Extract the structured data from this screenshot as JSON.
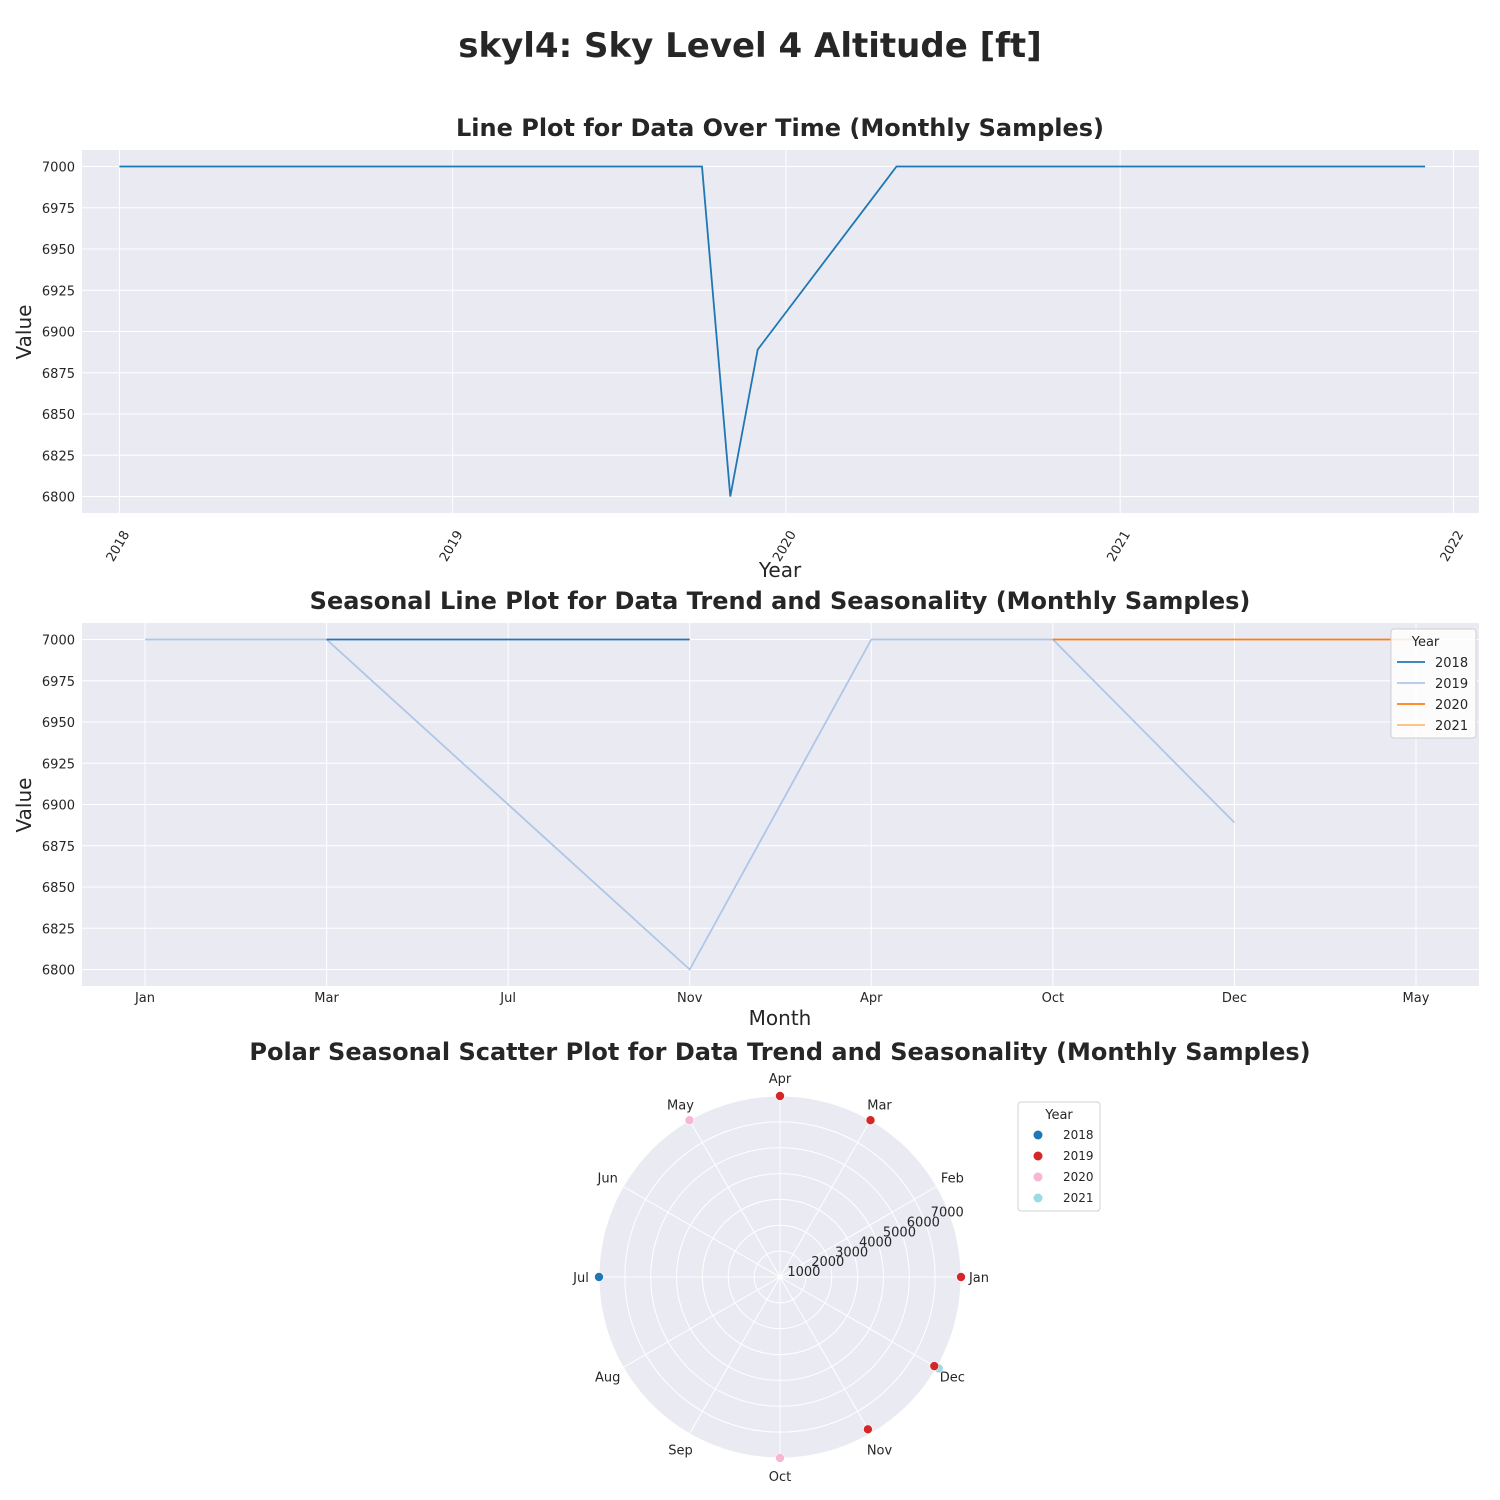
{
  "suptitle": "skyl4: Sky Level 4 Altitude [ft]",
  "colors": {
    "plot_bg": "#eaeaf2",
    "grid": "#ffffff",
    "main_line": "#1f77b4",
    "year_2018_line": "#1f77b4",
    "year_2019_line": "#aec7e8",
    "year_2020_line": "#ff7f0e",
    "year_2021_line": "#ffbb78",
    "year_2018_point": "#1f77b4",
    "year_2019_point": "#d62728",
    "year_2020_point": "#f7b6d2",
    "year_2021_point": "#9edae5"
  },
  "chart_data": [
    {
      "type": "line",
      "title": "Line Plot for Data Over Time (Monthly Samples)",
      "xlabel": "Year",
      "ylabel": "Value",
      "x_ticks": [
        "2018",
        "2019",
        "2020",
        "2021",
        "2022"
      ],
      "y_ticks": [
        7000,
        6975,
        6950,
        6925,
        6900,
        6875,
        6850,
        6825,
        6800
      ],
      "ylim": [
        6790,
        7010
      ],
      "xlim": [
        "2017-11-21",
        "2022-01-29"
      ],
      "grid": true,
      "series": [
        {
          "x": [
            "2018-01-01",
            "2019-10-01",
            "2019-11-01",
            "2019-12-01",
            "2020-05-01",
            "2021-12-01"
          ],
          "values": [
            7000,
            7000,
            6800,
            6889,
            7000,
            7000
          ]
        }
      ]
    },
    {
      "type": "line",
      "title": "Seasonal Line Plot for Data Trend and Seasonality (Monthly Samples)",
      "xlabel": "Month",
      "ylabel": "Value",
      "categories": [
        "Jan",
        "Mar",
        "Jul",
        "Nov",
        "Apr",
        "Oct",
        "Dec",
        "May"
      ],
      "y_ticks": [
        7000,
        6975,
        6950,
        6925,
        6900,
        6875,
        6850,
        6825,
        6800
      ],
      "ylim": [
        6790,
        7010
      ],
      "grid": true,
      "legend": {
        "title": "Year",
        "placement": "top-right"
      },
      "series": [
        {
          "name": "2018",
          "x": [
            "Mar",
            "Nov"
          ],
          "values": [
            7000,
            7000
          ]
        },
        {
          "name": "2019",
          "x": [
            "Jan",
            "Mar",
            "Nov",
            "Apr",
            "Oct",
            "Dec"
          ],
          "values": [
            7000,
            7000,
            6800,
            7000,
            7000,
            6889
          ]
        },
        {
          "name": "2020",
          "x": [
            "Oct",
            "May"
          ],
          "values": [
            7000,
            7000
          ]
        },
        {
          "name": "2021",
          "x": [
            "May"
          ],
          "values": [
            7000
          ]
        }
      ]
    },
    {
      "type": "scatter",
      "title": "Polar Seasonal Scatter Plot for Data Trend and Seasonality (Monthly Samples)",
      "projection": "polar",
      "angular_labels": [
        "Jan",
        "Feb",
        "Mar",
        "Apr",
        "May",
        "Jun",
        "Jul",
        "Aug",
        "Sep",
        "Oct",
        "Nov",
        "Dec"
      ],
      "radial_ticks": [
        1000,
        2000,
        3000,
        4000,
        5000,
        6000,
        7000
      ],
      "rlim": [
        0,
        7000
      ],
      "legend": {
        "title": "Year",
        "placement": "right"
      },
      "series": [
        {
          "name": "2018",
          "points": [
            {
              "month": "Jul",
              "value": 7000
            }
          ]
        },
        {
          "name": "2019",
          "points": [
            {
              "month": "Jan",
              "value": 7000
            },
            {
              "month": "Mar",
              "value": 7000
            },
            {
              "month": "Apr",
              "value": 7000
            },
            {
              "month": "Nov",
              "value": 6800
            },
            {
              "month": "Dec",
              "value": 6889
            }
          ]
        },
        {
          "name": "2020",
          "points": [
            {
              "month": "May",
              "value": 7000
            },
            {
              "month": "Oct",
              "value": 7000
            }
          ]
        },
        {
          "name": "2021",
          "points": [
            {
              "month": "Dec",
              "value": 7000
            }
          ]
        }
      ]
    }
  ]
}
